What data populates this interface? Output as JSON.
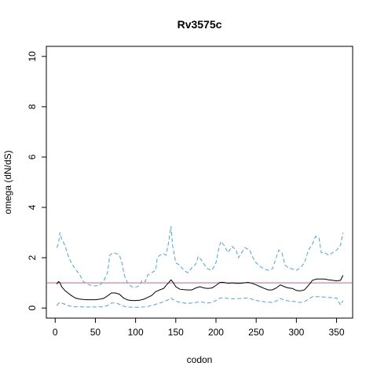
{
  "chart_data": {
    "type": "line",
    "title": "Rv3575c",
    "xlabel": "codon",
    "ylabel": "omega (dN/dS)",
    "xlim": [
      -11,
      370
    ],
    "ylim": [
      -0.4,
      10.4
    ],
    "xticks": [
      0,
      50,
      100,
      150,
      200,
      250,
      300,
      350
    ],
    "yticks": [
      0,
      2,
      4,
      6,
      8,
      10
    ],
    "reference_line": {
      "y": 1,
      "color": "#c86496"
    },
    "colors": {
      "mean": "#000000",
      "bounds": "#4aa3df"
    },
    "series": [
      {
        "role": "upper",
        "style": "dashed",
        "points": [
          [
            2,
            2.4
          ],
          [
            4,
            2.55
          ],
          [
            6,
            3.0
          ],
          [
            8,
            2.75
          ],
          [
            12,
            2.5
          ],
          [
            16,
            2.1
          ],
          [
            20,
            1.8
          ],
          [
            25,
            1.55
          ],
          [
            30,
            1.35
          ],
          [
            35,
            1.05
          ],
          [
            40,
            0.95
          ],
          [
            45,
            0.9
          ],
          [
            50,
            0.88
          ],
          [
            55,
            0.9
          ],
          [
            60,
            1.05
          ],
          [
            65,
            1.4
          ],
          [
            68,
            2.1
          ],
          [
            72,
            2.2
          ],
          [
            77,
            2.15
          ],
          [
            80,
            2.1
          ],
          [
            83,
            1.8
          ],
          [
            86,
            1.3
          ],
          [
            90,
            1.0
          ],
          [
            95,
            0.85
          ],
          [
            100,
            0.82
          ],
          [
            105,
            0.9
          ],
          [
            108,
            1.1
          ],
          [
            112,
            1.05
          ],
          [
            115,
            1.3
          ],
          [
            120,
            1.4
          ],
          [
            125,
            1.5
          ],
          [
            127,
            2.0
          ],
          [
            130,
            2.1
          ],
          [
            135,
            2.15
          ],
          [
            138,
            2.1
          ],
          [
            141,
            2.6
          ],
          [
            144,
            3.25
          ],
          [
            146,
            2.5
          ],
          [
            150,
            1.8
          ],
          [
            155,
            1.7
          ],
          [
            160,
            1.5
          ],
          [
            165,
            1.4
          ],
          [
            170,
            1.6
          ],
          [
            175,
            1.75
          ],
          [
            178,
            2.05
          ],
          [
            182,
            1.9
          ],
          [
            186,
            1.7
          ],
          [
            190,
            1.55
          ],
          [
            195,
            1.5
          ],
          [
            200,
            1.8
          ],
          [
            203,
            2.3
          ],
          [
            206,
            2.65
          ],
          [
            210,
            2.5
          ],
          [
            215,
            2.2
          ],
          [
            220,
            2.45
          ],
          [
            225,
            2.3
          ],
          [
            228,
            2.0
          ],
          [
            232,
            2.2
          ],
          [
            236,
            2.4
          ],
          [
            242,
            2.3
          ],
          [
            246,
            2.0
          ],
          [
            250,
            1.8
          ],
          [
            255,
            1.65
          ],
          [
            260,
            1.55
          ],
          [
            265,
            1.5
          ],
          [
            270,
            1.55
          ],
          [
            274,
            1.9
          ],
          [
            278,
            2.3
          ],
          [
            282,
            2.2
          ],
          [
            286,
            1.7
          ],
          [
            290,
            1.6
          ],
          [
            295,
            1.55
          ],
          [
            300,
            1.5
          ],
          [
            305,
            1.6
          ],
          [
            310,
            1.8
          ],
          [
            315,
            2.3
          ],
          [
            320,
            2.55
          ],
          [
            324,
            2.85
          ],
          [
            328,
            2.8
          ],
          [
            331,
            2.2
          ],
          [
            335,
            2.2
          ],
          [
            340,
            2.1
          ],
          [
            345,
            2.2
          ],
          [
            350,
            2.3
          ],
          [
            355,
            2.5
          ],
          [
            358,
            3.0
          ]
        ]
      },
      {
        "role": "mean",
        "style": "solid",
        "points": [
          [
            2,
            0.95
          ],
          [
            4,
            1.05
          ],
          [
            6,
            1.0
          ],
          [
            8,
            0.85
          ],
          [
            12,
            0.7
          ],
          [
            16,
            0.6
          ],
          [
            20,
            0.5
          ],
          [
            25,
            0.4
          ],
          [
            30,
            0.36
          ],
          [
            35,
            0.34
          ],
          [
            40,
            0.33
          ],
          [
            45,
            0.33
          ],
          [
            50,
            0.33
          ],
          [
            55,
            0.35
          ],
          [
            60,
            0.38
          ],
          [
            65,
            0.48
          ],
          [
            70,
            0.6
          ],
          [
            75,
            0.6
          ],
          [
            80,
            0.55
          ],
          [
            85,
            0.4
          ],
          [
            90,
            0.32
          ],
          [
            95,
            0.3
          ],
          [
            100,
            0.3
          ],
          [
            105,
            0.31
          ],
          [
            110,
            0.35
          ],
          [
            115,
            0.42
          ],
          [
            120,
            0.5
          ],
          [
            125,
            0.65
          ],
          [
            130,
            0.72
          ],
          [
            135,
            0.78
          ],
          [
            138,
            0.9
          ],
          [
            141,
            1.0
          ],
          [
            144,
            1.12
          ],
          [
            146,
            1.05
          ],
          [
            150,
            0.85
          ],
          [
            155,
            0.75
          ],
          [
            160,
            0.73
          ],
          [
            165,
            0.72
          ],
          [
            170,
            0.72
          ],
          [
            175,
            0.8
          ],
          [
            180,
            0.85
          ],
          [
            185,
            0.8
          ],
          [
            190,
            0.78
          ],
          [
            195,
            0.8
          ],
          [
            200,
            0.9
          ],
          [
            205,
            1.02
          ],
          [
            210,
            1.02
          ],
          [
            215,
            0.98
          ],
          [
            220,
            1.0
          ],
          [
            225,
            0.98
          ],
          [
            230,
            0.98
          ],
          [
            235,
            1.0
          ],
          [
            240,
            1.02
          ],
          [
            245,
            0.98
          ],
          [
            250,
            0.92
          ],
          [
            255,
            0.85
          ],
          [
            260,
            0.78
          ],
          [
            265,
            0.72
          ],
          [
            270,
            0.72
          ],
          [
            275,
            0.8
          ],
          [
            280,
            0.92
          ],
          [
            285,
            0.85
          ],
          [
            290,
            0.8
          ],
          [
            295,
            0.78
          ],
          [
            300,
            0.7
          ],
          [
            305,
            0.68
          ],
          [
            310,
            0.72
          ],
          [
            315,
            0.9
          ],
          [
            320,
            1.1
          ],
          [
            325,
            1.15
          ],
          [
            330,
            1.15
          ],
          [
            335,
            1.15
          ],
          [
            340,
            1.12
          ],
          [
            345,
            1.1
          ],
          [
            350,
            1.08
          ],
          [
            355,
            1.1
          ],
          [
            358,
            1.3
          ]
        ]
      },
      {
        "role": "lower",
        "style": "dashed",
        "points": [
          [
            2,
            0.1
          ],
          [
            4,
            0.18
          ],
          [
            6,
            0.22
          ],
          [
            8,
            0.2
          ],
          [
            12,
            0.15
          ],
          [
            16,
            0.1
          ],
          [
            20,
            0.07
          ],
          [
            25,
            0.05
          ],
          [
            30,
            0.05
          ],
          [
            40,
            0.04
          ],
          [
            50,
            0.04
          ],
          [
            60,
            0.05
          ],
          [
            65,
            0.1
          ],
          [
            70,
            0.2
          ],
          [
            75,
            0.2
          ],
          [
            80,
            0.15
          ],
          [
            85,
            0.07
          ],
          [
            90,
            0.04
          ],
          [
            100,
            0.03
          ],
          [
            110,
            0.04
          ],
          [
            115,
            0.06
          ],
          [
            120,
            0.1
          ],
          [
            125,
            0.15
          ],
          [
            130,
            0.2
          ],
          [
            135,
            0.25
          ],
          [
            140,
            0.32
          ],
          [
            144,
            0.4
          ],
          [
            146,
            0.35
          ],
          [
            150,
            0.28
          ],
          [
            155,
            0.22
          ],
          [
            160,
            0.2
          ],
          [
            165,
            0.18
          ],
          [
            170,
            0.2
          ],
          [
            175,
            0.22
          ],
          [
            180,
            0.25
          ],
          [
            185,
            0.22
          ],
          [
            190,
            0.2
          ],
          [
            195,
            0.22
          ],
          [
            200,
            0.3
          ],
          [
            205,
            0.4
          ],
          [
            210,
            0.4
          ],
          [
            215,
            0.38
          ],
          [
            220,
            0.37
          ],
          [
            230,
            0.38
          ],
          [
            240,
            0.4
          ],
          [
            245,
            0.35
          ],
          [
            250,
            0.3
          ],
          [
            260,
            0.25
          ],
          [
            270,
            0.22
          ],
          [
            275,
            0.28
          ],
          [
            280,
            0.38
          ],
          [
            285,
            0.32
          ],
          [
            290,
            0.28
          ],
          [
            300,
            0.25
          ],
          [
            305,
            0.22
          ],
          [
            310,
            0.25
          ],
          [
            315,
            0.35
          ],
          [
            320,
            0.45
          ],
          [
            330,
            0.45
          ],
          [
            340,
            0.42
          ],
          [
            350,
            0.4
          ],
          [
            355,
            0.12
          ],
          [
            358,
            0.3
          ]
        ]
      }
    ]
  }
}
